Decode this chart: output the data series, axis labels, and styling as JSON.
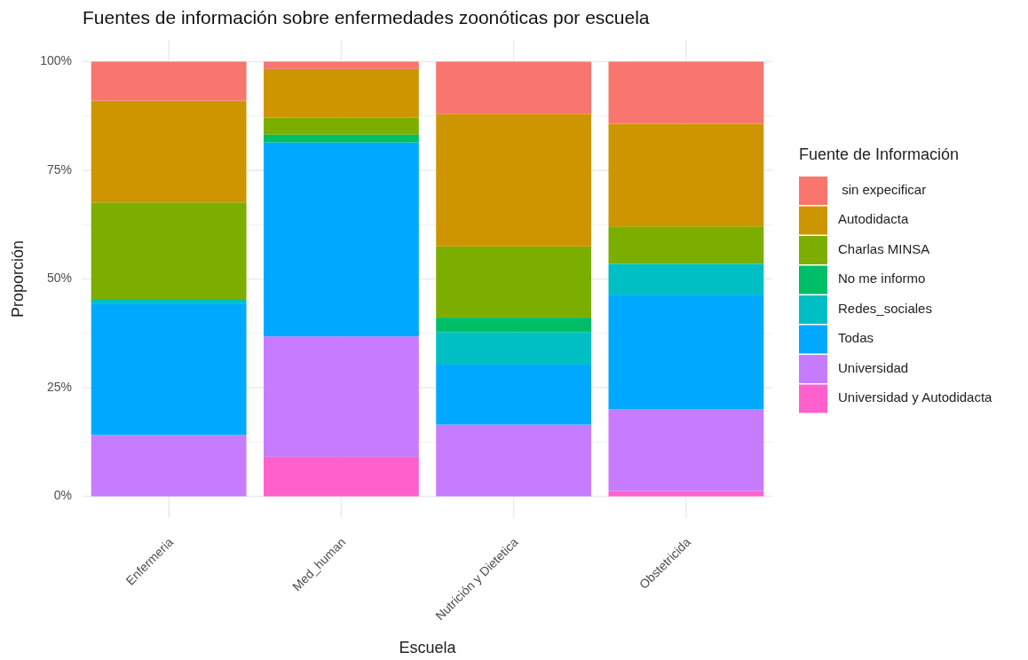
{
  "chart_data": {
    "type": "bar",
    "stacked": true,
    "title": "Fuentes de información sobre enfermedades zoonóticas por escuela",
    "xlabel": "Escuela",
    "ylabel": "Proporción",
    "legend_title": "Fuente de Información",
    "legend": "right",
    "grid": true,
    "categories": [
      "Enfermeria",
      "Med_human",
      "Nutrición y Dietetica",
      "Obstetricida"
    ],
    "ylim": [
      -0.05,
      1.05
    ],
    "yticks": [
      {
        "value": 0,
        "label": "0%"
      },
      {
        "value": 0.25,
        "label": "25%"
      },
      {
        "value": 0.5,
        "label": "50%"
      },
      {
        "value": 0.75,
        "label": "75%"
      },
      {
        "value": 1,
        "label": "100%"
      }
    ],
    "series": [
      {
        "name": "Universidad y Autodidacta",
        "color": "#ff61cc",
        "values": [
          null,
          0.091,
          null,
          0.012
        ]
      },
      {
        "name": "Universidad",
        "color": "#c77cff",
        "values": [
          0.141,
          0.277,
          0.165,
          0.188
        ]
      },
      {
        "name": "Todas",
        "color": "#00a9ff",
        "values": [
          0.301,
          0.446,
          0.138,
          0.264
        ]
      },
      {
        "name": "Redes_sociales",
        "color": "#00bfc4",
        "values": [
          0.012,
          null,
          0.075,
          0.071
        ]
      },
      {
        "name": "No me informo",
        "color": "#00be67",
        "values": [
          null,
          0.018,
          0.033,
          null
        ]
      },
      {
        "name": "Charlas MINSA",
        "color": "#7cae00",
        "values": [
          0.222,
          0.039,
          0.164,
          0.086
        ]
      },
      {
        "name": "Autodidacta",
        "color": "#cd9600",
        "values": [
          0.234,
          0.112,
          0.305,
          0.236
        ]
      },
      {
        "name": " sin expecificar",
        "color": "#f8766d",
        "values": [
          0.09,
          0.017,
          0.12,
          0.143
        ]
      }
    ]
  }
}
